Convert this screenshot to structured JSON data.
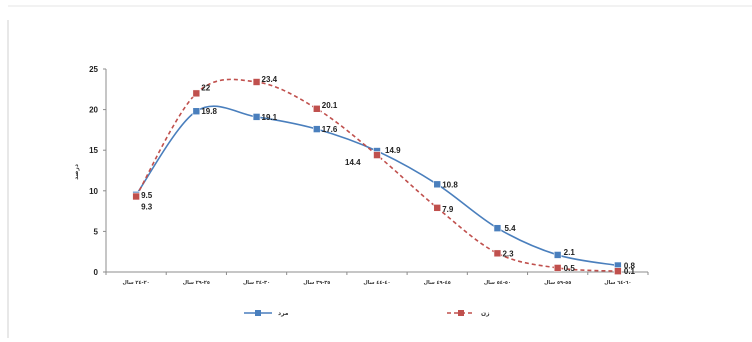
{
  "chart_data": {
    "type": "line",
    "categories": [
      "٢٠-٢٤ سال",
      "٢٥-٢٩ سال",
      "٣٠-٣٤ سال",
      "٣٥-٣٩ سال",
      "٤٠-٤٤ سال",
      "٤٥-٤٩ سال",
      "٥٠-٥٤ سال",
      "٥٥-٥٩ سال",
      "٦٠-٦٤ سال"
    ],
    "ylabel": "درصد",
    "xlabel": "",
    "ylim": [
      0,
      25
    ],
    "yticks": [
      0,
      5,
      10,
      15,
      20,
      25
    ],
    "grid": false,
    "legend": "bottom",
    "series": [
      {
        "name": "مرد",
        "values": [
          9.5,
          19.8,
          19.1,
          17.6,
          14.9,
          10.8,
          5.4,
          2.1,
          0.8
        ],
        "color": "#4a7fbd",
        "style": "solid",
        "marker": "square"
      },
      {
        "name": "زن",
        "values": [
          9.3,
          22,
          23.4,
          20.1,
          14.4,
          7.9,
          2.3,
          0.5,
          0.1
        ],
        "color": "#c0504d",
        "style": "dashed",
        "marker": "square"
      }
    ]
  }
}
